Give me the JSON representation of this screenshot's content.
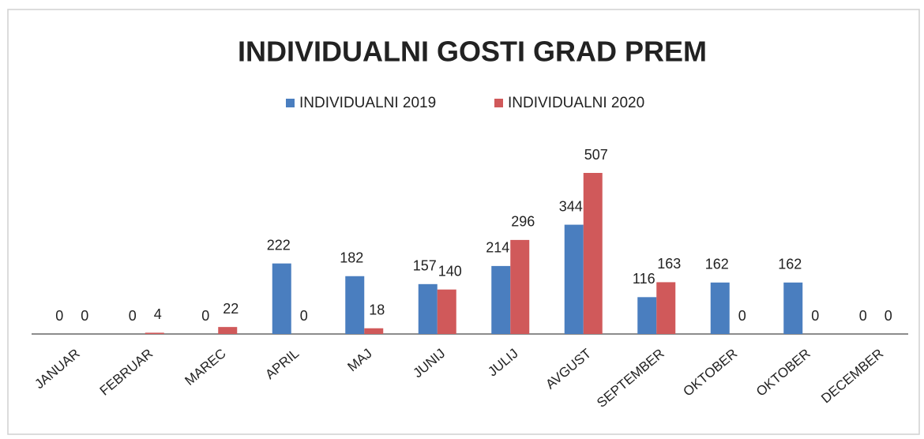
{
  "chart_data": {
    "type": "bar",
    "title": "INDIVIDUALNI GOSTI GRAD PREM",
    "categories": [
      "JANUAR",
      "FEBRUAR",
      "MAREC",
      "APRIL",
      "MAJ",
      "JUNIJ",
      "JULIJ",
      "AVGUST",
      "SEPTEMBER",
      "OKTOBER",
      "OKTOBER",
      "DECEMBER"
    ],
    "series": [
      {
        "name": "INDIVIDUALNI 2019",
        "color": "#4a7ebf",
        "values": [
          0,
          0,
          0,
          222,
          182,
          157,
          214,
          344,
          116,
          162,
          162,
          0
        ]
      },
      {
        "name": "INDIVIDUALNI 2020",
        "color": "#d0595a",
        "values": [
          0,
          4,
          22,
          0,
          18,
          140,
          296,
          507,
          163,
          0,
          0,
          0
        ]
      }
    ],
    "legend": "top"
  }
}
